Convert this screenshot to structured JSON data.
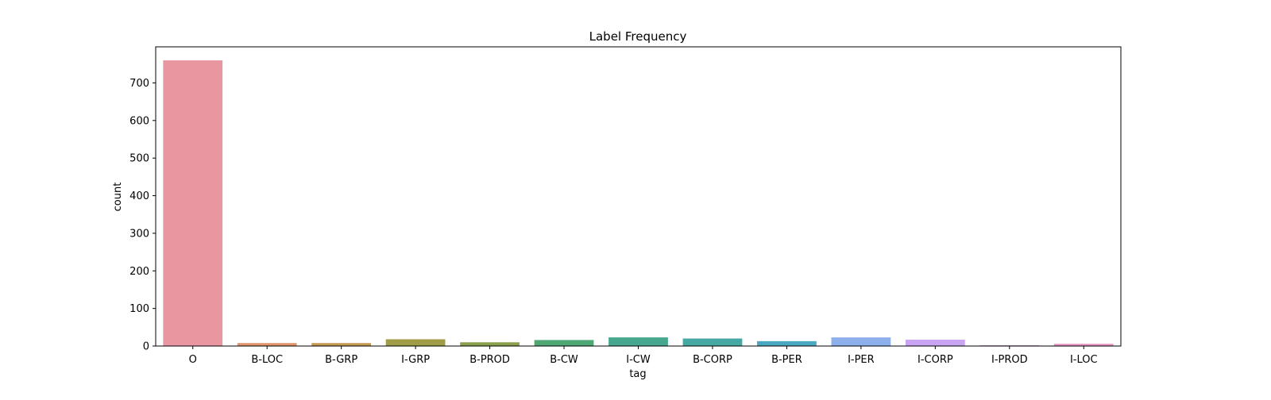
{
  "chart_data": {
    "type": "bar",
    "title": "Label Frequency",
    "xlabel": "tag",
    "ylabel": "count",
    "categories": [
      "O",
      "B-LOC",
      "B-GRP",
      "I-GRP",
      "B-PROD",
      "B-CW",
      "I-CW",
      "B-CORP",
      "B-PER",
      "I-PER",
      "I-CORP",
      "I-PROD",
      "I-LOC"
    ],
    "values": [
      760,
      8,
      8,
      18,
      10,
      16,
      23,
      20,
      13,
      23,
      17,
      2,
      6
    ],
    "colors": [
      "#e8969f",
      "#e0956a",
      "#c59a52",
      "#a09c48",
      "#8aa04d",
      "#4fa874",
      "#45a88f",
      "#45a8a3",
      "#4aa8c0",
      "#8db0ea",
      "#c8a4f2",
      "#e399e6",
      "#e895c4"
    ],
    "ylim": [
      0,
      796
    ],
    "yticks": [
      0,
      100,
      200,
      300,
      400,
      500,
      600,
      700
    ],
    "grid": false,
    "legend": "none"
  }
}
